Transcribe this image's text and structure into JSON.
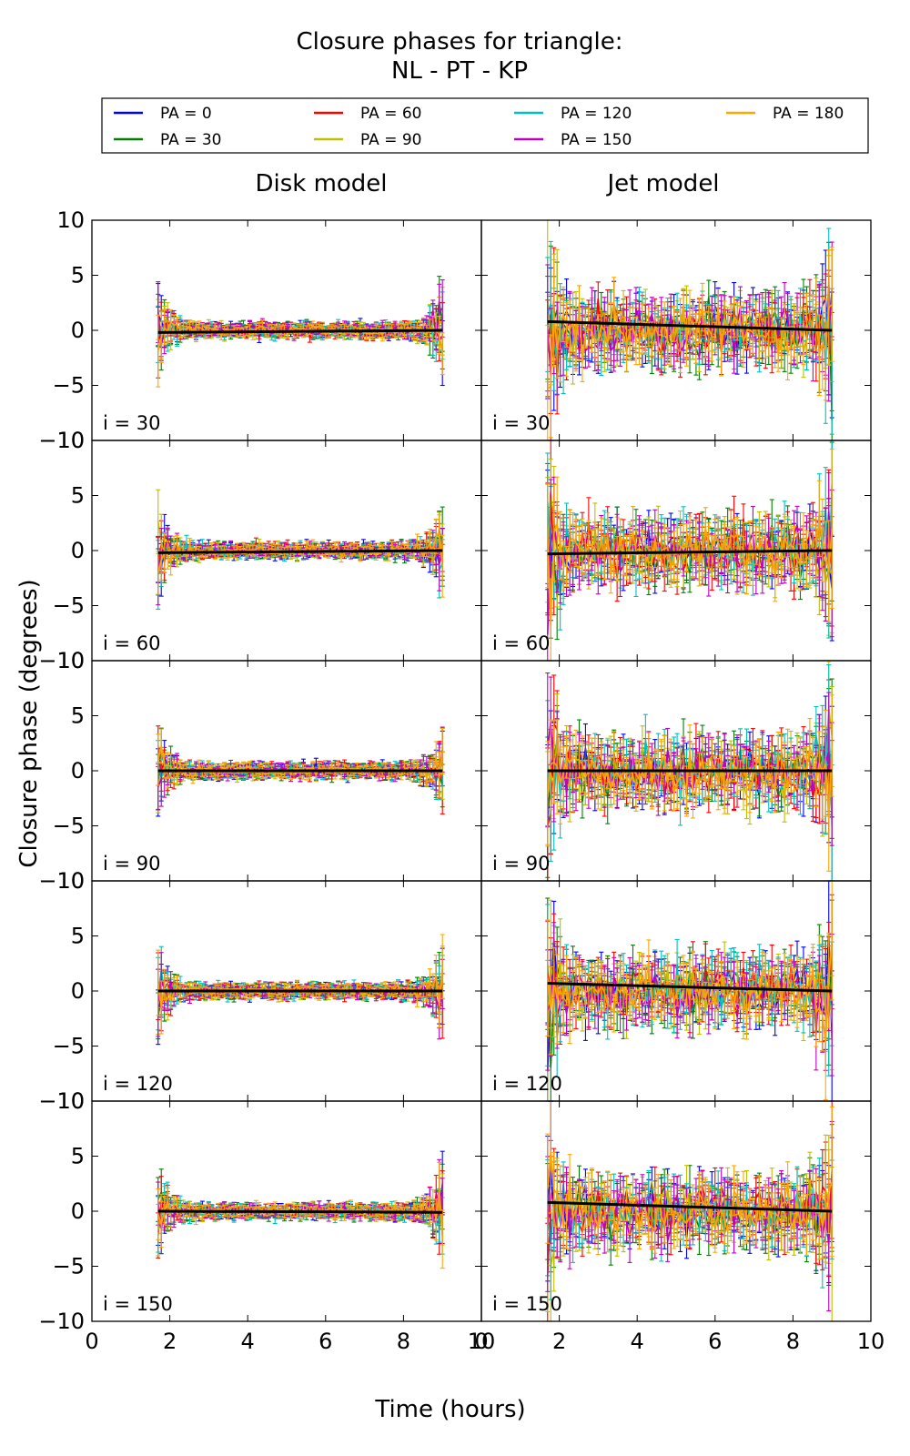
{
  "chart_data": {
    "type": "line",
    "title": "Closure phases for triangle:",
    "subtitle": "NL - PT - KP",
    "xlabel": "Time (hours)",
    "ylabel": "Closure phase (degrees)",
    "xlim": [
      0,
      10
    ],
    "ylim": [
      -10,
      10
    ],
    "xticks": [
      "0",
      "2",
      "4",
      "6",
      "8",
      "10"
    ],
    "yticks": [
      "−10",
      "−5",
      "0",
      "5",
      "10"
    ],
    "columns": [
      "Disk model",
      "Jet model"
    ],
    "rows": [
      "i = 30",
      "i = 60",
      "i = 90",
      "i = 120",
      "i = 150"
    ],
    "time_range": [
      1.7,
      9.0
    ],
    "legend_position": "top",
    "legend": [
      {
        "name": "PA = 0",
        "color": "#0000ff"
      },
      {
        "name": "PA = 30",
        "color": "#008000"
      },
      {
        "name": "PA = 60",
        "color": "#ff0000"
      },
      {
        "name": "PA = 90",
        "color": "#bfbf00"
      },
      {
        "name": "PA = 120",
        "color": "#00bfbf"
      },
      {
        "name": "PA = 150",
        "color": "#bf00bf"
      },
      {
        "name": "PA = 180",
        "color": "#ffa500"
      }
    ],
    "mean_line_color": "#000000",
    "disk_mean": [
      {
        "x": [
          1.7,
          9.0
        ],
        "y": [
          -0.2,
          0.0
        ]
      },
      {
        "x": [
          1.7,
          9.0
        ],
        "y": [
          -0.2,
          0.0
        ]
      },
      {
        "x": [
          1.7,
          9.0
        ],
        "y": [
          0.0,
          0.0
        ]
      },
      {
        "x": [
          1.7,
          9.0
        ],
        "y": [
          0.0,
          0.0
        ]
      },
      {
        "x": [
          1.7,
          9.0
        ],
        "y": [
          0.0,
          -0.1
        ]
      }
    ],
    "jet_mean": [
      {
        "x": [
          1.7,
          9.0
        ],
        "y": [
          0.8,
          0.0
        ]
      },
      {
        "x": [
          1.7,
          9.0
        ],
        "y": [
          -0.3,
          0.0
        ]
      },
      {
        "x": [
          1.7,
          9.0
        ],
        "y": [
          0.0,
          0.0
        ]
      },
      {
        "x": [
          1.7,
          9.0
        ],
        "y": [
          0.7,
          0.0
        ]
      },
      {
        "x": [
          1.7,
          9.0
        ],
        "y": [
          0.8,
          0.0
        ]
      }
    ]
  }
}
